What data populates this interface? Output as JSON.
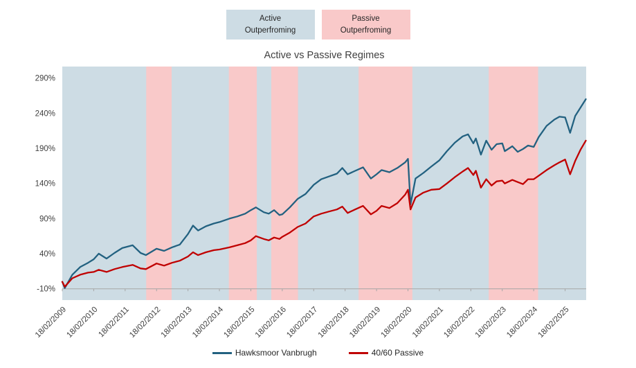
{
  "top_legend": {
    "active_label": "Active\nOutperfroming",
    "passive_label": "Passive\nOutperfroming"
  },
  "chart_data": {
    "type": "line",
    "title": "Active vs Passive Regimes",
    "x_tick_labels": [
      "18/02/2009",
      "18/02/2010",
      "18/02/2011",
      "18/02/2012",
      "18/02/2013",
      "18/02/2014",
      "18/02/2015",
      "18/02/2016",
      "18/02/2017",
      "18/02/2018",
      "18/02/2019",
      "18/02/2020",
      "18/02/2021",
      "18/02/2022",
      "18/02/2023",
      "18/02/2024",
      "18/02/2025"
    ],
    "x_tick_years": [
      2009.13,
      2010.13,
      2011.13,
      2012.13,
      2013.13,
      2014.13,
      2015.13,
      2016.13,
      2017.13,
      2018.13,
      2019.13,
      2020.13,
      2021.13,
      2022.13,
      2023.13,
      2024.13,
      2025.13
    ],
    "y_tick_labels": [
      "-10%",
      "40%",
      "90%",
      "140%",
      "190%",
      "240%",
      "290%"
    ],
    "y_tick_values": [
      -10,
      40,
      90,
      140,
      190,
      240,
      290
    ],
    "x_range_years": [
      2009.13,
      2025.8
    ],
    "grid": "off",
    "legend_position": "bottom",
    "dates": [
      "Feb 2009",
      "Mar 2009",
      "Jun 2009",
      "Sep 2009",
      "Dec 2009",
      "Feb 2010",
      "Apr 2010",
      "Jul 2010",
      "Oct 2010",
      "Jan 2011",
      "May 2011",
      "Aug 2011",
      "Oct 2011",
      "Feb 2012",
      "May 2012",
      "Aug 2012",
      "Nov 2012",
      "Feb 2013",
      "Apr 2013",
      "Jun 2013",
      "Sep 2013",
      "Dec 2013",
      "Feb 2014",
      "Jun 2014",
      "Sep 2014",
      "Dec 2014",
      "Feb 2015",
      "Apr 2015",
      "Jul 2015",
      "Sep 2015",
      "Nov 2015",
      "Jan 2016",
      "Feb 2016",
      "May 2016",
      "Aug 2016",
      "Nov 2016",
      "Feb 2017",
      "May 2017",
      "Aug 2017",
      "Nov 2017",
      "Jan 2018",
      "Mar 2018",
      "Jun 2018",
      "Sep 2018",
      "Dec 2018",
      "Feb 2019",
      "Apr 2019",
      "Jul 2019",
      "Oct 2019",
      "Jan 2020",
      "Feb 2020",
      "Mar 2020",
      "May 2020",
      "Aug 2020",
      "Nov 2020",
      "Feb 2021",
      "May 2021",
      "Aug 2021",
      "Nov 2021",
      "Jan 2022",
      "Mar 2022",
      "Apr 2022",
      "Jun 2022",
      "Aug 2022",
      "Oct 2022",
      "Dec 2022",
      "Feb 2023",
      "Mar 2023",
      "Jun 2023",
      "Aug 2023",
      "Oct 2023",
      "Dec 2023",
      "Feb 2024",
      "Apr 2024",
      "Jul 2024",
      "Oct 2024",
      "Dec 2024",
      "Feb 2025",
      "Apr 2025",
      "Jun 2025",
      "Aug 2025",
      "Oct 2025"
    ],
    "years": [
      2009.13,
      2009.21,
      2009.45,
      2009.7,
      2009.95,
      2010.13,
      2010.29,
      2010.54,
      2010.79,
      2011.04,
      2011.37,
      2011.62,
      2011.79,
      2012.13,
      2012.37,
      2012.62,
      2012.87,
      2013.13,
      2013.29,
      2013.45,
      2013.7,
      2013.95,
      2014.13,
      2014.45,
      2014.7,
      2014.95,
      2015.13,
      2015.29,
      2015.54,
      2015.7,
      2015.87,
      2016.04,
      2016.13,
      2016.37,
      2016.62,
      2016.87,
      2017.13,
      2017.37,
      2017.62,
      2017.87,
      2018.04,
      2018.21,
      2018.45,
      2018.7,
      2018.95,
      2019.13,
      2019.29,
      2019.54,
      2019.79,
      2020.04,
      2020.13,
      2020.21,
      2020.37,
      2020.62,
      2020.87,
      2021.13,
      2021.37,
      2021.62,
      2021.87,
      2022.04,
      2022.21,
      2022.29,
      2022.45,
      2022.62,
      2022.79,
      2022.95,
      2023.13,
      2023.21,
      2023.45,
      2023.62,
      2023.79,
      2023.95,
      2024.13,
      2024.29,
      2024.54,
      2024.79,
      2024.95,
      2025.13,
      2025.29,
      2025.45,
      2025.62,
      2025.79
    ],
    "series": [
      {
        "name": "Hawksmoor Vanbrugh",
        "color": "#226180",
        "values": [
          0,
          -9,
          10,
          21,
          27,
          32,
          40,
          33,
          41,
          48,
          52,
          41,
          38,
          47,
          44,
          49,
          53,
          68,
          80,
          73,
          79,
          83,
          85,
          90,
          93,
          97,
          102,
          106,
          99,
          97,
          102,
          95,
          96,
          106,
          118,
          125,
          138,
          146,
          150,
          154,
          162,
          153,
          158,
          163,
          147,
          153,
          159,
          156,
          162,
          170,
          175,
          110,
          147,
          155,
          164,
          173,
          186,
          198,
          207,
          210,
          197,
          204,
          181,
          201,
          188,
          196,
          197,
          186,
          193,
          185,
          189,
          194,
          192,
          206,
          222,
          231,
          235,
          234,
          212,
          236,
          248,
          260
        ]
      },
      {
        "name": "40/60 Passive",
        "color": "#c00000",
        "values": [
          0,
          -7,
          5,
          10,
          13,
          14,
          17,
          14,
          18,
          21,
          24,
          19,
          18,
          26,
          23,
          27,
          30,
          36,
          42,
          38,
          42,
          45,
          46,
          49,
          52,
          55,
          59,
          65,
          61,
          59,
          63,
          61,
          64,
          70,
          78,
          83,
          93,
          97,
          100,
          103,
          107,
          98,
          103,
          108,
          96,
          101,
          108,
          105,
          112,
          124,
          131,
          103,
          120,
          127,
          131,
          132,
          140,
          149,
          157,
          162,
          152,
          158,
          134,
          146,
          137,
          143,
          144,
          140,
          145,
          142,
          139,
          146,
          146,
          151,
          159,
          166,
          170,
          174,
          153,
          172,
          188,
          201
        ]
      }
    ],
    "regimes": {
      "active_color": "#cddce4",
      "passive_color": "#f9c9c9",
      "passive_bands": [
        {
          "start": "Oct 2011",
          "end": "Aug 2012",
          "start_year": 2011.8,
          "end_year": 2012.61
        },
        {
          "start": "Jun 2014",
          "end": "Apr 2015",
          "start_year": 2014.43,
          "end_year": 2015.32
        },
        {
          "start": "Oct 2015",
          "end": "Aug 2016",
          "start_year": 2015.78,
          "end_year": 2016.63
        },
        {
          "start": "Jul 2018",
          "end": "Apr 2020",
          "start_year": 2018.56,
          "end_year": 2020.27
        },
        {
          "start": "Sep 2022",
          "end": "Apr 2024",
          "start_year": 2022.7,
          "end_year": 2024.27
        }
      ]
    },
    "axis_color": "#a6a6a6",
    "label_color": "#404040"
  }
}
